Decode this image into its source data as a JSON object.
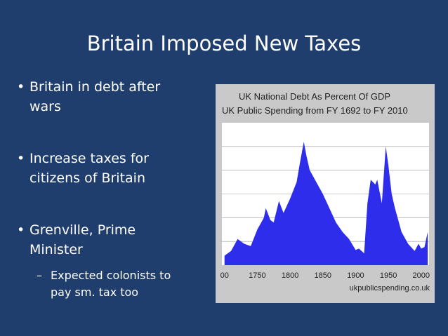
{
  "slide": {
    "title": "Britain Imposed New Taxes",
    "bullets": [
      {
        "text": [
          "Britain in debt after",
          "wars"
        ]
      },
      {
        "text": [
          "Increase taxes for",
          "citizens of Britain"
        ]
      },
      {
        "text": [
          "Grenville, Prime",
          "Minister"
        ],
        "sub": [
          "Expected colonists to",
          "pay sm. tax too"
        ]
      }
    ]
  },
  "chart_data": {
    "type": "area",
    "title": "UK National Debt As Percent Of GDP",
    "subtitle": "UK Public Spending from FY 1692 to FY 2010",
    "source": "ukpublicspending.co.uk",
    "x": [
      1700,
      1710,
      1720,
      1730,
      1740,
      1750,
      1760,
      1763,
      1770,
      1775,
      1783,
      1790,
      1800,
      1810,
      1815,
      1821,
      1825,
      1830,
      1840,
      1850,
      1860,
      1870,
      1880,
      1890,
      1900,
      1905,
      1913,
      1918,
      1923,
      1930,
      1933,
      1940,
      1946,
      1950,
      1955,
      1960,
      1970,
      1980,
      1990,
      1996,
      2000,
      2005,
      2010
    ],
    "values": [
      20,
      30,
      55,
      45,
      40,
      75,
      100,
      120,
      95,
      90,
      135,
      110,
      140,
      175,
      215,
      260,
      230,
      200,
      175,
      150,
      120,
      90,
      70,
      55,
      32,
      35,
      25,
      130,
      180,
      170,
      180,
      130,
      250,
      210,
      150,
      120,
      70,
      45,
      30,
      45,
      35,
      38,
      70
    ],
    "color": "#2d2deb",
    "xlim": [
      1696,
      2012
    ],
    "ylim": [
      0,
      300
    ],
    "xticks": [
      {
        "value": 1700,
        "label": "00"
      },
      1750,
      1800,
      1850,
      1900,
      1950,
      2000
    ]
  }
}
